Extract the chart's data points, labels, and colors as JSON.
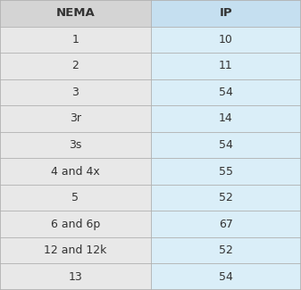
{
  "headers": [
    "NEMA",
    "IP"
  ],
  "rows": [
    [
      "1",
      "10"
    ],
    [
      "2",
      "11"
    ],
    [
      "3",
      "54"
    ],
    [
      "3r",
      "14"
    ],
    [
      "3s",
      "54"
    ],
    [
      "4 and 4x",
      "55"
    ],
    [
      "5",
      "52"
    ],
    [
      "6 and 6p",
      "67"
    ],
    [
      "12 and 12k",
      "52"
    ],
    [
      "13",
      "54"
    ]
  ],
  "header_bg_left": "#d4d4d4",
  "header_bg_right": "#c5dff0",
  "row_bg_left": "#e8e8e8",
  "row_bg_right": "#daeef8",
  "border_color": "#b0b0b0",
  "header_font_size": 9.5,
  "cell_font_size": 9,
  "text_color": "#333333",
  "fig_bg": "#ffffff",
  "col_split": 0.5
}
